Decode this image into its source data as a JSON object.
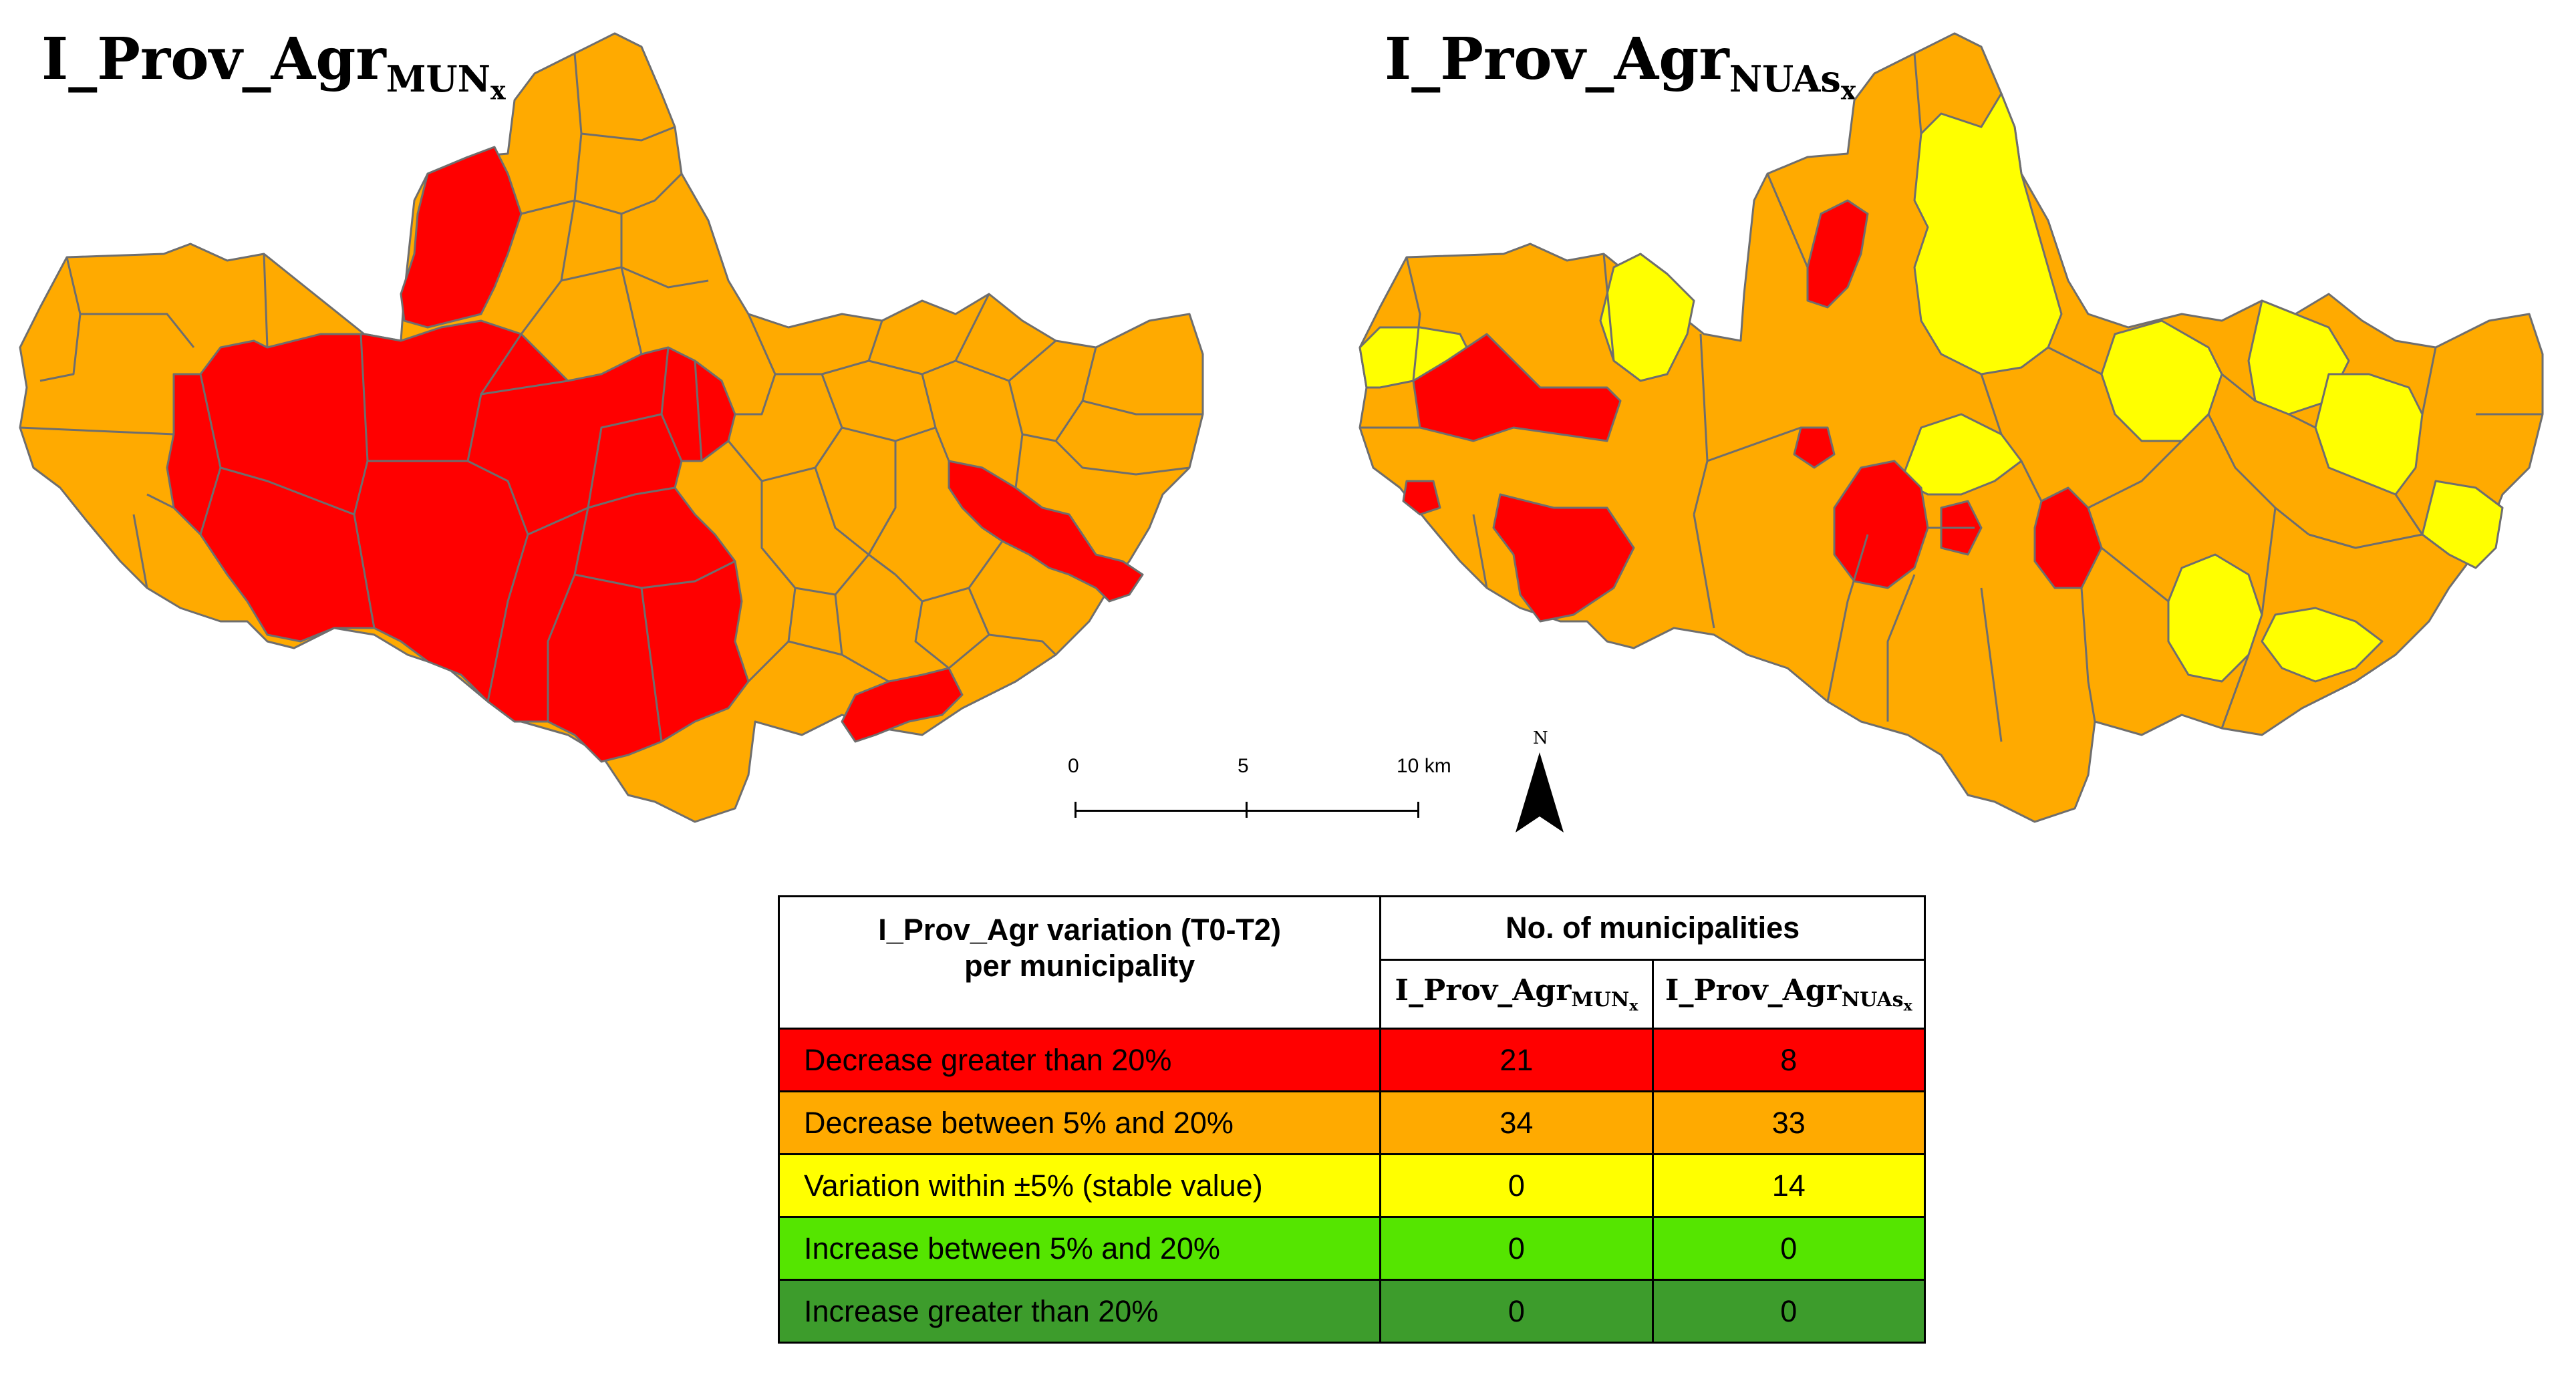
{
  "maps": {
    "left": {
      "title_base": "I_Prov_Agr",
      "title_sub": "MUN",
      "title_subsub": "x"
    },
    "right": {
      "title_base": "I_Prov_Agr",
      "title_sub": "NUAs",
      "title_subsub": "x"
    }
  },
  "scale_bar": {
    "ticks": [
      "0",
      "5",
      "10 km"
    ]
  },
  "north_arrow": {
    "label": "N"
  },
  "colors": {
    "decrease_gt_20": "#ff0000",
    "decrease_5_20": "#ffaa00",
    "stable": "#ffff00",
    "increase_5_20": "#55e500",
    "increase_gt_20": "#3d9c2c",
    "boundary": "#6e6e6e"
  },
  "legend_table": {
    "header_variation_line1": "I_Prov_Agr variation (T0-T2)",
    "header_variation_line2": "per municipality",
    "header_count": "No. of municipalities",
    "col_mun": {
      "base": "I_Prov_Agr",
      "sub": "MUN",
      "subsub": "x"
    },
    "col_nuas": {
      "base": "I_Prov_Agr",
      "sub": "NUAs",
      "subsub": "x"
    },
    "rows": [
      {
        "label": "Decrease greater than 20%",
        "mun": "21",
        "nuas": "8",
        "color": "#ff0000"
      },
      {
        "label": "Decrease between 5% and 20%",
        "mun": "34",
        "nuas": "33",
        "color": "#ffaa00"
      },
      {
        "label": "Variation within  ±5% (stable value)",
        "mun": "0",
        "nuas": "14",
        "color": "#ffff00"
      },
      {
        "label": "Increase between 5% and 20%",
        "mun": "0",
        "nuas": "0",
        "color": "#55e500"
      },
      {
        "label": "Increase greater than 20%",
        "mun": "0",
        "nuas": "0",
        "color": "#3d9c2c"
      }
    ]
  }
}
